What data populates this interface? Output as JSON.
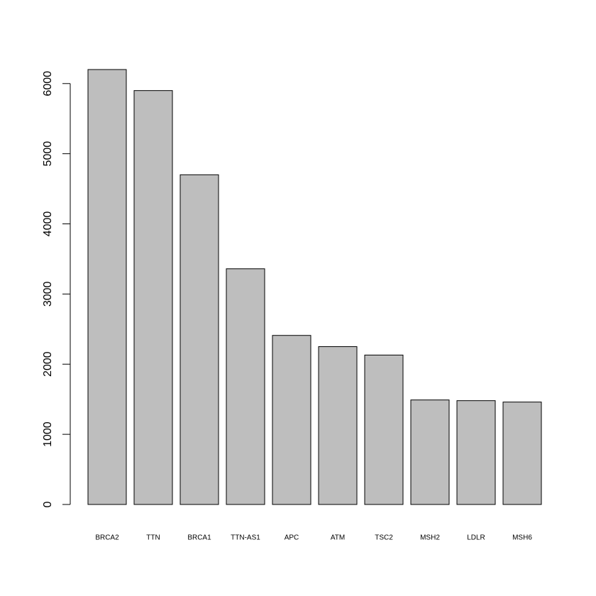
{
  "chart_data": {
    "type": "bar",
    "categories": [
      "BRCA2",
      "TTN",
      "BRCA1",
      "TTN-AS1",
      "APC",
      "ATM",
      "TSC2",
      "MSH2",
      "LDLR",
      "MSH6"
    ],
    "values": [
      6200,
      5900,
      4700,
      3360,
      2410,
      2250,
      2130,
      1490,
      1480,
      1460
    ],
    "color": "#bebebe",
    "ylim": [
      0,
      6200
    ],
    "yticks": [
      0,
      1000,
      2000,
      3000,
      4000,
      5000,
      6000
    ]
  }
}
